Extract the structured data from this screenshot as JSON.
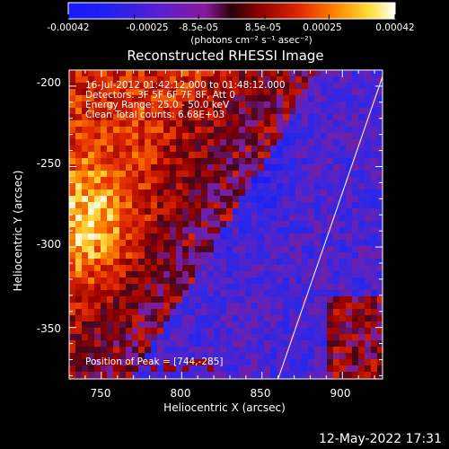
{
  "colorbar": {
    "min": -0.00042,
    "max": 0.00042,
    "tick_labels": [
      "-0.00042",
      "-0.00025",
      "-8.5e-05",
      "8.5e-05",
      "0.00025",
      "0.00042"
    ],
    "unit_label": "(photons cm⁻² s⁻¹ asec⁻²)"
  },
  "chart_data": {
    "type": "heatmap",
    "title": "Reconstructed RHESSI Image",
    "xlabel": "Heliocentric X (arcsec)",
    "ylabel": "Heliocentric Y (arcsec)",
    "xlim": [
      730,
      925
    ],
    "ylim": [
      -382,
      -190
    ],
    "x_ticks": [
      750,
      800,
      850,
      900
    ],
    "y_ticks": [
      -200,
      -250,
      -300,
      -350
    ],
    "x_tick_labels": [
      "750",
      "800",
      "850",
      "900"
    ],
    "y_tick_labels": [
      "-200",
      "-250",
      "-300",
      "-350"
    ],
    "annotations": [
      "16-Jul-2012 01:42:12.000 to 01:48:12.000",
      "Detectors: 3F 5F 6F 7F 8F, Att 0",
      "Energy Range: 25.0 - 50.0 keV",
      "Clean     Total counts: 6.68E+03"
    ],
    "peak_label": "Position of Peak = [744,-285]",
    "peak_position": [
      744,
      -285
    ],
    "limb_line": [
      [
        860,
        -382
      ],
      [
        925,
        -194
      ]
    ]
  },
  "footer": {
    "date": "12-May-2022 17:31"
  }
}
